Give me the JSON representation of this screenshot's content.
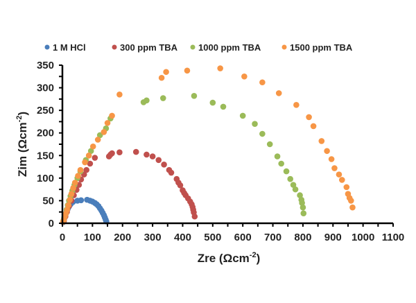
{
  "chart_data": {
    "type": "scatter",
    "title": "",
    "xlabel": "Zre (Ωcm",
    "xlabel_sup": "-2",
    "xlabel_close": ")",
    "ylabel": "Zim (Ωcm",
    "ylabel_sup": "-2",
    "ylabel_close": ")",
    "xlim": [
      0,
      1100
    ],
    "ylim": [
      0,
      350
    ],
    "xticks": [
      0,
      100,
      200,
      300,
      400,
      500,
      600,
      700,
      800,
      900,
      1000,
      1100
    ],
    "yticks": [
      0,
      50,
      100,
      150,
      200,
      250,
      300,
      350
    ],
    "grid": false,
    "legend_position": "top",
    "series": [
      {
        "name": "1 M HCl",
        "color": "#4a7ebb",
        "points": [
          [
            2,
            2
          ],
          [
            4,
            6
          ],
          [
            6,
            10
          ],
          [
            8,
            14
          ],
          [
            10,
            18
          ],
          [
            12,
            22
          ],
          [
            15,
            27
          ],
          [
            18,
            32
          ],
          [
            22,
            37
          ],
          [
            27,
            42
          ],
          [
            35,
            47
          ],
          [
            50,
            50
          ],
          [
            62,
            51
          ],
          [
            82,
            52
          ],
          [
            92,
            50
          ],
          [
            100,
            48
          ],
          [
            108,
            45
          ],
          [
            114,
            42
          ],
          [
            120,
            38
          ],
          [
            125,
            33
          ],
          [
            130,
            28
          ],
          [
            134,
            23
          ],
          [
            138,
            18
          ],
          [
            141,
            13
          ],
          [
            144,
            8
          ],
          [
            146,
            4
          ]
        ]
      },
      {
        "name": "300 ppm TBA",
        "color": "#c0504d",
        "points": [
          [
            5,
            5
          ],
          [
            10,
            15
          ],
          [
            15,
            25
          ],
          [
            22,
            38
          ],
          [
            30,
            50
          ],
          [
            38,
            62
          ],
          [
            47,
            74
          ],
          [
            55,
            85
          ],
          [
            62,
            97
          ],
          [
            72,
            108
          ],
          [
            80,
            118
          ],
          [
            92,
            132
          ],
          [
            108,
            145
          ],
          [
            155,
            148
          ],
          [
            160,
            152
          ],
          [
            165,
            155
          ],
          [
            190,
            157
          ],
          [
            245,
            158
          ],
          [
            280,
            152
          ],
          [
            300,
            148
          ],
          [
            320,
            140
          ],
          [
            338,
            130
          ],
          [
            355,
            118
          ],
          [
            362,
            112
          ],
          [
            380,
            98
          ],
          [
            386,
            90
          ],
          [
            392,
            84
          ],
          [
            400,
            73
          ],
          [
            405,
            67
          ],
          [
            410,
            62
          ],
          [
            418,
            55
          ],
          [
            425,
            48
          ],
          [
            430,
            42
          ],
          [
            433,
            36
          ],
          [
            435,
            30
          ],
          [
            437,
            24
          ],
          [
            440,
            15
          ]
        ]
      },
      {
        "name": "1000 ppm TBA",
        "color": "#9bbb59",
        "points": [
          [
            3,
            5
          ],
          [
            6,
            12
          ],
          [
            10,
            20
          ],
          [
            14,
            30
          ],
          [
            18,
            40
          ],
          [
            22,
            50
          ],
          [
            27,
            60
          ],
          [
            33,
            72
          ],
          [
            40,
            85
          ],
          [
            50,
            100
          ],
          [
            60,
            115
          ],
          [
            78,
            140
          ],
          [
            95,
            160
          ],
          [
            125,
            195
          ],
          [
            145,
            210
          ],
          [
            160,
            232
          ],
          [
            270,
            268
          ],
          [
            280,
            272
          ],
          [
            335,
            277
          ],
          [
            438,
            282
          ],
          [
            500,
            267
          ],
          [
            535,
            258
          ],
          [
            600,
            238
          ],
          [
            640,
            220
          ],
          [
            665,
            198
          ],
          [
            690,
            175
          ],
          [
            715,
            148
          ],
          [
            728,
            132
          ],
          [
            745,
            115
          ],
          [
            758,
            98
          ],
          [
            768,
            85
          ],
          [
            775,
            75
          ],
          [
            790,
            62
          ],
          [
            795,
            52
          ],
          [
            797,
            45
          ],
          [
            800,
            35
          ],
          [
            802,
            22
          ]
        ]
      },
      {
        "name": "1500 ppm TBA",
        "color": "#f79646",
        "points": [
          [
            2,
            3
          ],
          [
            5,
            8
          ],
          [
            8,
            15
          ],
          [
            12,
            22
          ],
          [
            16,
            30
          ],
          [
            20,
            40
          ],
          [
            25,
            52
          ],
          [
            30,
            65
          ],
          [
            36,
            78
          ],
          [
            42,
            90
          ],
          [
            52,
            105
          ],
          [
            60,
            118
          ],
          [
            75,
            135
          ],
          [
            88,
            150
          ],
          [
            102,
            170
          ],
          [
            118,
            185
          ],
          [
            138,
            202
          ],
          [
            150,
            222
          ],
          [
            165,
            238
          ],
          [
            190,
            285
          ],
          [
            330,
            322
          ],
          [
            345,
            335
          ],
          [
            415,
            338
          ],
          [
            525,
            343
          ],
          [
            605,
            325
          ],
          [
            665,
            312
          ],
          [
            720,
            288
          ],
          [
            778,
            262
          ],
          [
            820,
            235
          ],
          [
            835,
            215
          ],
          [
            862,
            182
          ],
          [
            880,
            160
          ],
          [
            895,
            142
          ],
          [
            905,
            122
          ],
          [
            920,
            108
          ],
          [
            930,
            96
          ],
          [
            945,
            80
          ],
          [
            950,
            65
          ],
          [
            955,
            56
          ],
          [
            960,
            50
          ],
          [
            965,
            35
          ]
        ]
      }
    ]
  }
}
